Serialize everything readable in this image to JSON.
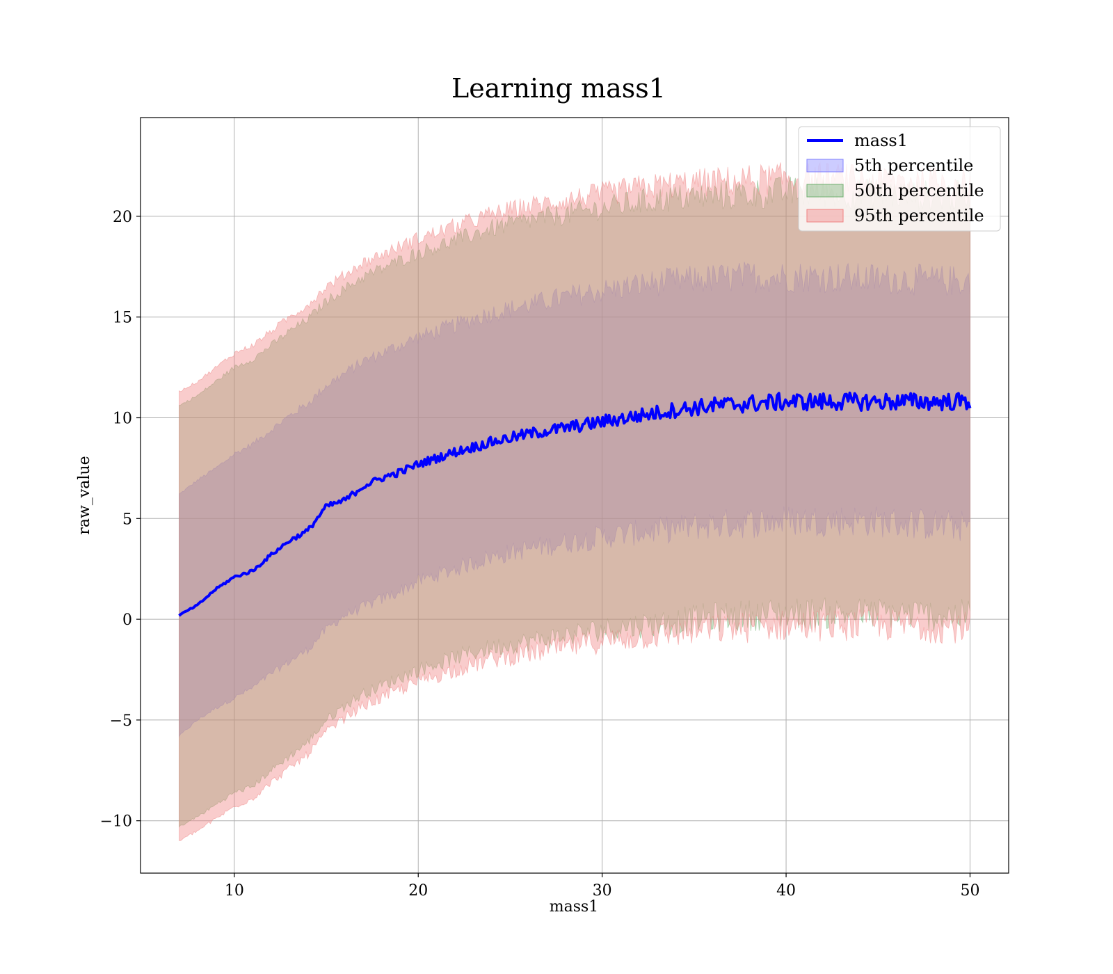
{
  "chart_data": {
    "type": "area",
    "title": "Learning mass1",
    "xlabel": "mass1",
    "ylabel": "raw_value",
    "xlim": [
      4.9,
      52.1
    ],
    "ylim": [
      -12.6,
      24.9
    ],
    "xticks": [
      10,
      20,
      30,
      40,
      50
    ],
    "yticks": [
      -10,
      -5,
      0,
      5,
      10,
      15,
      20
    ],
    "ytick_labels": [
      "−10",
      "−5",
      "0",
      "5",
      "10",
      "15",
      "20"
    ],
    "xtick_labels": [
      "10",
      "20",
      "30",
      "40",
      "50"
    ],
    "grid": true,
    "legend_position": "upper right",
    "x": [
      7,
      8,
      9,
      10,
      11,
      12,
      13,
      14,
      15,
      16,
      17,
      18,
      19,
      20,
      22,
      24,
      26,
      28,
      30,
      32,
      34,
      36,
      38,
      40,
      42,
      44,
      46,
      48,
      50
    ],
    "series": [
      {
        "name": "mass1",
        "kind": "line",
        "color": "#0000ff",
        "values": [
          0.2,
          0.7,
          1.5,
          2.1,
          2.4,
          3.2,
          3.9,
          4.4,
          5.6,
          5.9,
          6.6,
          7.0,
          7.3,
          7.7,
          8.3,
          8.8,
          9.2,
          9.5,
          9.8,
          10.1,
          10.4,
          10.6,
          10.7,
          10.8,
          10.8,
          10.8,
          10.8,
          10.8,
          10.8
        ]
      },
      {
        "name": "5th percentile",
        "kind": "band",
        "color": "#8080ff",
        "lower": [
          -5.8,
          -5.0,
          -4.4,
          -3.9,
          -3.4,
          -2.7,
          -2.1,
          -1.5,
          -0.5,
          0.2,
          0.6,
          1.0,
          1.4,
          1.9,
          2.5,
          3.1,
          3.5,
          3.8,
          4.1,
          4.3,
          4.5,
          4.7,
          4.8,
          4.9,
          4.9,
          4.9,
          4.8,
          4.7,
          4.6
        ],
        "upper": [
          6.2,
          6.9,
          7.5,
          8.2,
          8.7,
          9.4,
          10.1,
          10.7,
          11.6,
          12.2,
          12.8,
          13.2,
          13.6,
          14.0,
          14.6,
          15.2,
          15.6,
          16.0,
          16.3,
          16.6,
          16.8,
          16.9,
          17.0,
          17.0,
          17.0,
          16.9,
          16.9,
          16.8,
          16.8
        ]
      },
      {
        "name": "50th percentile",
        "kind": "band",
        "color": "#70b070",
        "lower": [
          -10.3,
          -9.8,
          -9.2,
          -8.6,
          -8.3,
          -7.5,
          -6.8,
          -6.1,
          -5.0,
          -4.3,
          -3.7,
          -3.3,
          -2.9,
          -2.5,
          -1.9,
          -1.4,
          -1.1,
          -0.8,
          -0.5,
          -0.3,
          -0.1,
          0.1,
          0.2,
          0.3,
          0.3,
          0.3,
          0.3,
          0.2,
          0.2
        ],
        "upper": [
          10.6,
          11.1,
          11.8,
          12.5,
          12.9,
          13.6,
          14.3,
          14.9,
          15.8,
          16.4,
          17.0,
          17.4,
          17.8,
          18.2,
          18.8,
          19.4,
          19.8,
          20.1,
          20.4,
          20.7,
          20.9,
          21.0,
          21.1,
          21.2,
          21.2,
          21.1,
          21.1,
          21.0,
          21.0
        ]
      },
      {
        "name": "95th percentile",
        "kind": "band",
        "color": "#f08080",
        "lower": [
          -11.0,
          -10.5,
          -9.9,
          -9.3,
          -8.9,
          -8.1,
          -7.4,
          -6.7,
          -5.6,
          -4.9,
          -4.3,
          -3.9,
          -3.5,
          -3.1,
          -2.5,
          -2.0,
          -1.7,
          -1.4,
          -1.1,
          -0.9,
          -0.7,
          -0.5,
          -0.4,
          -0.3,
          -0.3,
          -0.3,
          -0.3,
          -0.4,
          -0.4
        ],
        "upper": [
          11.3,
          11.8,
          12.5,
          13.2,
          13.6,
          14.3,
          15.0,
          15.6,
          16.5,
          17.1,
          17.7,
          18.1,
          18.5,
          18.9,
          19.5,
          20.1,
          20.5,
          20.8,
          21.1,
          21.4,
          21.6,
          21.7,
          21.8,
          21.9,
          21.9,
          21.8,
          21.8,
          21.7,
          21.7
        ]
      }
    ],
    "legend": [
      "mass1",
      "5th percentile",
      "50th percentile",
      "95th percentile"
    ]
  }
}
